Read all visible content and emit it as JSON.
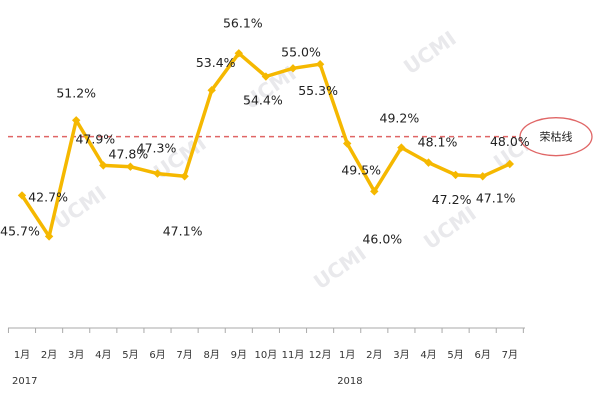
{
  "chart_data": {
    "type": "line",
    "categories": [
      "1月",
      "2月",
      "3月",
      "4月",
      "5月",
      "6月",
      "7月",
      "8月",
      "9月",
      "10月",
      "11月",
      "12月",
      "1月",
      "2月",
      "3月",
      "4月",
      "5月",
      "6月",
      "7月"
    ],
    "year_labels": [
      {
        "text": "2017",
        "index": 0
      },
      {
        "text": "2018",
        "index": 12
      }
    ],
    "series": [
      {
        "values": [
          45.7,
          42.7,
          51.2,
          47.9,
          47.8,
          47.3,
          47.1,
          53.4,
          56.1,
          54.4,
          55.0,
          55.3,
          49.5,
          46.0,
          49.2,
          48.1,
          47.2,
          47.1,
          48.0
        ],
        "labels": [
          "45.7%",
          "42.7%",
          "51.2%",
          "47.9%",
          "47.8%",
          "47.3%",
          "47.1%",
          "53.4%",
          "56.1%",
          "54.4%",
          "55.0%",
          "55.3%",
          "49.5%",
          "46.0%",
          "49.2%",
          "48.1%",
          "47.2%",
          "47.1%",
          "48.0%"
        ],
        "color": "#f5b800"
      }
    ],
    "reference_line": {
      "value": 50,
      "label": "荣枯线",
      "color": "#e06666"
    },
    "ylim": [
      36,
      60
    ],
    "watermark": "UCMI",
    "grid": false
  }
}
